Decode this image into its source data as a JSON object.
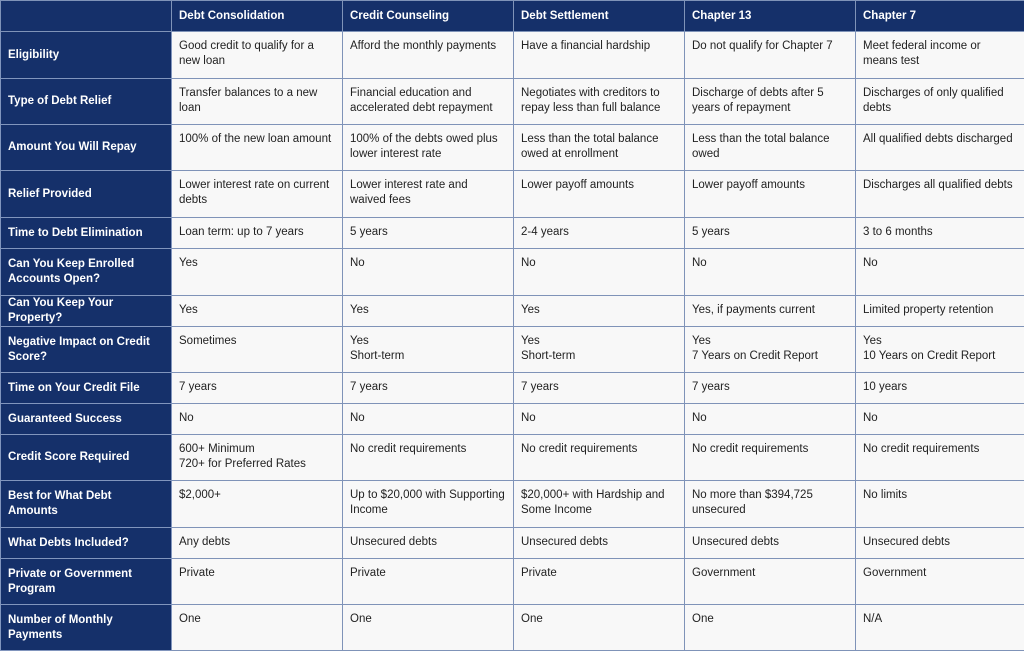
{
  "columns": [
    "",
    "Debt Consolidation",
    "Credit Counseling",
    "Debt Settlement",
    "Chapter 13",
    "Chapter 7"
  ],
  "rows": [
    {
      "label": "Eligibility",
      "cells": [
        "Good credit to qualify for a new loan",
        "Afford the monthly payments",
        "Have a financial hardship",
        "Do not qualify for Chapter 7",
        "Meet federal income or means test"
      ]
    },
    {
      "label": "Type of Debt Relief",
      "cells": [
        "Transfer balances to a new loan",
        "Financial education and accelerated debt repayment",
        "Negotiates with creditors to repay less than full balance",
        "Discharge of debts after 5 years of repayment",
        "Discharges of only qualified debts"
      ]
    },
    {
      "label": "Amount You Will Repay",
      "cells": [
        "100% of the new loan amount",
        "100% of the debts owed plus lower interest rate",
        "Less than the total balance owed at enrollment",
        "Less than the total balance owed",
        "All qualified debts discharged"
      ]
    },
    {
      "label": "Relief Provided",
      "cells": [
        "Lower interest rate on current debts",
        "Lower interest rate and waived fees",
        "Lower payoff amounts",
        "Lower payoff amounts",
        "Discharges all qualified debts"
      ]
    },
    {
      "label": "Time to Debt Elimination",
      "cells": [
        "Loan term: up to 7 years",
        "5 years",
        "2-4 years",
        "5 years",
        "3 to 6 months"
      ]
    },
    {
      "label": "Can You Keep Enrolled Accounts Open?",
      "cells": [
        "Yes",
        "No",
        "No",
        "No",
        "No"
      ]
    },
    {
      "label": "Can You Keep Your Property?",
      "cells": [
        "Yes",
        "Yes",
        "Yes",
        "Yes, if payments current",
        "Limited property retention"
      ]
    },
    {
      "label": "Negative Impact on Credit Score?",
      "cells": [
        "Sometimes",
        "Yes\nShort-term",
        "Yes\nShort-term",
        "Yes\n7 Years on Credit Report",
        "Yes\n10 Years on Credit Report"
      ]
    },
    {
      "label": "Time on Your Credit File",
      "cells": [
        "7 years",
        "7 years",
        "7 years",
        "7 years",
        "10 years"
      ]
    },
    {
      "label": "Guaranteed Success",
      "cells": [
        "No",
        "No",
        "No",
        "No",
        "No"
      ]
    },
    {
      "label": "Credit Score Required",
      "cells": [
        "600+ Minimum\n720+ for Preferred Rates",
        "No credit requirements",
        "No credit requirements",
        "No credit requirements",
        "No credit requirements"
      ]
    },
    {
      "label": "Best for What Debt Amounts",
      "cells": [
        "$2,000+",
        "Up to $20,000 with Supporting Income",
        "$20,000+ with Hardship and Some Income",
        "No more than $394,725 unsecured",
        "No limits"
      ]
    },
    {
      "label": "What Debts Included?",
      "cells": [
        "Any debts",
        "Unsecured debts",
        "Unsecured debts",
        "Unsecured debts",
        "Unsecured debts"
      ]
    },
    {
      "label": "Private or Government Program",
      "cells": [
        "Private",
        "Private",
        "Private",
        "Government",
        "Government"
      ]
    },
    {
      "label": "Number of Monthly Payments",
      "cells": [
        "One",
        "One",
        "One",
        "One",
        "N/A"
      ]
    }
  ]
}
